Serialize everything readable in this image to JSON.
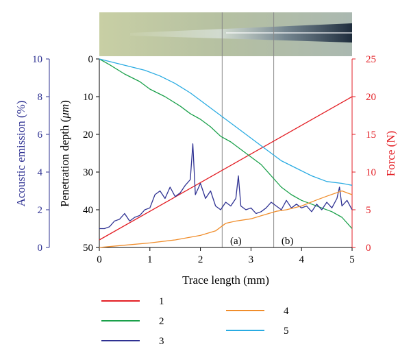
{
  "chart_data": {
    "type": "line",
    "x_axis": {
      "label": "Trace length (mm)",
      "range": [
        0,
        5
      ],
      "ticks": [
        "0",
        "1",
        "2",
        "3",
        "4",
        "5"
      ]
    },
    "axes": {
      "acoustic": {
        "label": "Acoustic emission (%)",
        "range": [
          0,
          10
        ],
        "ticks": [
          "0",
          "2",
          "4",
          "6",
          "8",
          "10"
        ],
        "color": "#2e3192"
      },
      "depth": {
        "label_prefix": "Penetration depth (",
        "label_unit": "μm",
        "label_suffix": ")",
        "range": [
          0,
          50
        ],
        "inverted": true,
        "ticks": [
          "0",
          "10",
          "20",
          "30",
          "40",
          "50"
        ],
        "color": "#000000"
      },
      "force": {
        "label": "Force (N)",
        "range": [
          0,
          25
        ],
        "ticks": [
          "0",
          "5",
          "10",
          "15",
          "20",
          "25"
        ],
        "color": "#e31e24"
      }
    },
    "markers": [
      {
        "x": 2.43,
        "label": "(a)"
      },
      {
        "x": 3.45,
        "label": "(b)"
      }
    ],
    "series": [
      {
        "name": "1",
        "color": "#e31e24",
        "axis": "force",
        "x": [
          0,
          5
        ],
        "y": [
          1,
          20
        ]
      },
      {
        "name": "2",
        "color": "#1aa04a",
        "axis": "depth",
        "x": [
          0,
          0.2,
          0.5,
          0.8,
          1.0,
          1.3,
          1.6,
          1.8,
          2.0,
          2.2,
          2.4,
          2.6,
          2.8,
          3.0,
          3.2,
          3.4,
          3.6,
          3.8,
          4.0,
          4.2,
          4.4,
          4.6,
          4.8,
          5.0
        ],
        "y": [
          0,
          1.5,
          4,
          6,
          8,
          10,
          12.5,
          14.5,
          16,
          18,
          20.5,
          22,
          24,
          26,
          28,
          31,
          34,
          36,
          37.5,
          38.5,
          39.5,
          40.5,
          42,
          45
        ]
      },
      {
        "name": "3",
        "color": "#2e3192",
        "axis": "acoustic",
        "x": [
          0,
          0.1,
          0.2,
          0.3,
          0.4,
          0.5,
          0.6,
          0.7,
          0.8,
          0.9,
          1.0,
          1.1,
          1.2,
          1.3,
          1.4,
          1.5,
          1.6,
          1.7,
          1.8,
          1.85,
          1.9,
          2.0,
          2.1,
          2.2,
          2.3,
          2.4,
          2.5,
          2.6,
          2.7,
          2.75,
          2.8,
          2.9,
          3.0,
          3.1,
          3.2,
          3.3,
          3.4,
          3.5,
          3.6,
          3.7,
          3.8,
          3.9,
          4.0,
          4.1,
          4.2,
          4.3,
          4.4,
          4.5,
          4.6,
          4.7,
          4.75,
          4.8,
          4.9,
          5.0
        ],
        "y": [
          1.0,
          1.0,
          1.1,
          1.4,
          1.5,
          1.8,
          1.4,
          1.6,
          1.7,
          2.0,
          2.1,
          2.8,
          3.0,
          2.6,
          3.2,
          2.7,
          2.9,
          3.3,
          3.6,
          5.5,
          2.8,
          3.4,
          2.6,
          3.0,
          2.2,
          2.0,
          2.4,
          2.2,
          2.6,
          3.8,
          2.2,
          2.0,
          2.1,
          1.8,
          1.9,
          2.1,
          2.4,
          2.2,
          2.0,
          2.5,
          2.1,
          2.3,
          2.1,
          2.2,
          1.9,
          2.3,
          2.0,
          2.4,
          2.1,
          2.6,
          3.2,
          2.2,
          2.5,
          2.0
        ]
      },
      {
        "name": "4",
        "color": "#f08d2b",
        "axis": "force",
        "x": [
          0,
          0.5,
          1.0,
          1.5,
          2.0,
          2.3,
          2.5,
          2.7,
          3.0,
          3.2,
          3.5,
          3.7,
          4.0,
          4.3,
          4.5,
          4.8,
          5.0
        ],
        "y": [
          0,
          0.3,
          0.6,
          1.0,
          1.6,
          2.2,
          3.2,
          3.5,
          3.8,
          4.2,
          4.8,
          5.0,
          5.5,
          6.3,
          6.8,
          7.5,
          7.0
        ]
      },
      {
        "name": "5",
        "color": "#29abe2",
        "axis": "depth",
        "x": [
          0,
          0.3,
          0.6,
          0.9,
          1.2,
          1.5,
          1.8,
          2.1,
          2.4,
          2.7,
          3.0,
          3.3,
          3.6,
          3.9,
          4.2,
          4.5,
          4.8,
          5.0
        ],
        "y": [
          0,
          1,
          2,
          3,
          4.5,
          6.5,
          9,
          12,
          15,
          18,
          21,
          24,
          27,
          29,
          31,
          32.5,
          33,
          33.5
        ]
      }
    ]
  }
}
